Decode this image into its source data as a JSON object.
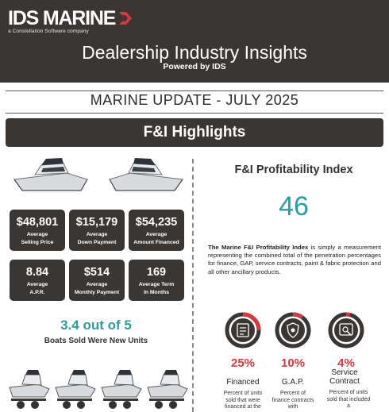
{
  "header": {
    "logo_text": "IDS MARINE",
    "logo_tagline": "a Constellation Software company",
    "title": "Dealership Industry Insights",
    "subtitle": "Powered by IDS"
  },
  "update_title": "MARINE UPDATE - JULY 2025",
  "section_title": "F&I Highlights",
  "stats": [
    {
      "value": "$48,801",
      "label1": "Average",
      "label2": "Selling Price"
    },
    {
      "value": "$15,179",
      "label1": "Average",
      "label2": "Down Payment"
    },
    {
      "value": "$54,235",
      "label1": "Average",
      "label2": "Amount Financed"
    },
    {
      "value": "8.84",
      "label1": "Average",
      "label2": "A.P.R."
    },
    {
      "value": "$514",
      "label1": "Average",
      "label2": "Monthly Payment"
    },
    {
      "value": "169",
      "label1": "Average Term",
      "label2": "In Months"
    }
  ],
  "new_units": {
    "value": "3.4 out of 5",
    "label": "Boats Sold Were New Units"
  },
  "profitability": {
    "title": "F&I Profitability Index",
    "value": "46",
    "desc_bold": "The Marine F&I Profitability Index",
    "desc_rest": " is simply a measurement representing the combined total of the penetration percentages for finance, GAP, service contracts, paint & fabric protection and all other ancillary products."
  },
  "metrics": [
    {
      "icon": "finance-icon",
      "pct": "25%",
      "fraction": 0.25,
      "label": "Financed",
      "desc": "Percent of units sold that were financed at the"
    },
    {
      "icon": "gap-shield-icon",
      "pct": "10%",
      "fraction": 0.1,
      "label": "G.A.P.",
      "desc": "Percent of finance contracts with"
    },
    {
      "icon": "service-contract-icon",
      "pct": "4%",
      "fraction": 0.04,
      "label": "Service Contract",
      "desc": "Percent of units sold that included a"
    }
  ],
  "colors": {
    "dark": "#3a3634",
    "accent_teal": "#2a9da0",
    "accent_red": "#d9383d"
  }
}
